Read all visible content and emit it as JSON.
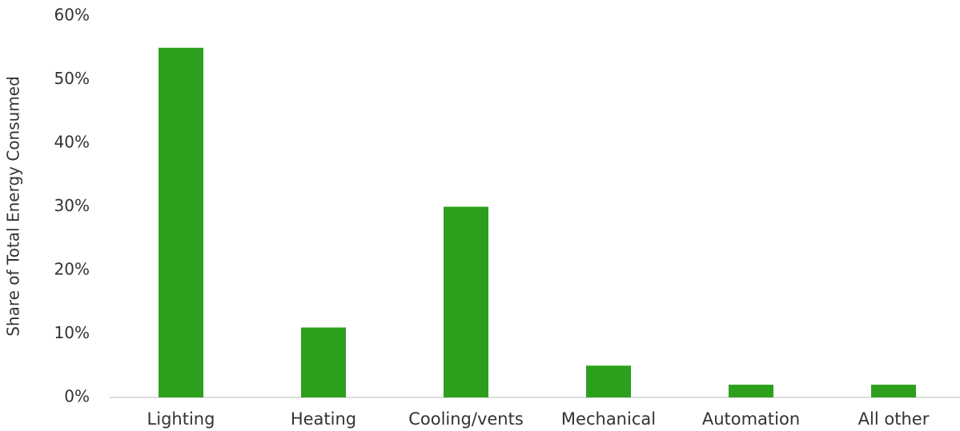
{
  "chart_data": {
    "type": "bar",
    "y_label": "Share of Total Energy Consumed",
    "categories": [
      "Lighting",
      "Heating",
      "Cooling/vents",
      "Mechanical",
      "Automation",
      "All other"
    ],
    "values": [
      55,
      11,
      30,
      5,
      2,
      2
    ],
    "color": "#2ca01c",
    "ylim": [
      0,
      60
    ],
    "yticks": [
      {
        "value": 0,
        "label": "0%"
      },
      {
        "value": 10,
        "label": "10%"
      },
      {
        "value": 20,
        "label": "20%"
      },
      {
        "value": 30,
        "label": "30%"
      },
      {
        "value": 40,
        "label": "40%"
      },
      {
        "value": 50,
        "label": "50%"
      },
      {
        "value": 60,
        "label": "60%"
      }
    ],
    "grid": false
  }
}
